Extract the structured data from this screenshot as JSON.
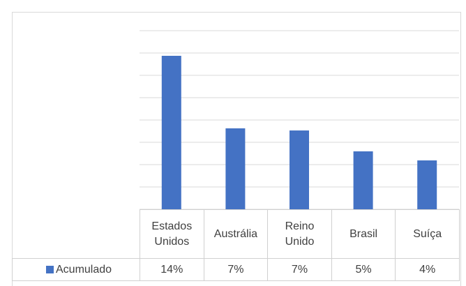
{
  "chart_data": {
    "type": "bar",
    "categories": [
      "Estados Unidos",
      "Austrália",
      "Reino Unido",
      "Brasil",
      "Suíça"
    ],
    "series": [
      {
        "name": "Acumulado",
        "color": "#4472c4",
        "values": [
          13.75,
          7.25,
          7.06,
          5.19,
          4.38
        ],
        "value_labels": [
          "14%",
          "7%",
          "7%",
          "5%",
          "4%"
        ]
      }
    ],
    "ylim": [
      0,
      16
    ],
    "yticks": [
      0,
      2,
      4,
      6,
      8,
      10,
      12,
      14,
      16
    ],
    "grid": true,
    "data_table": true
  }
}
